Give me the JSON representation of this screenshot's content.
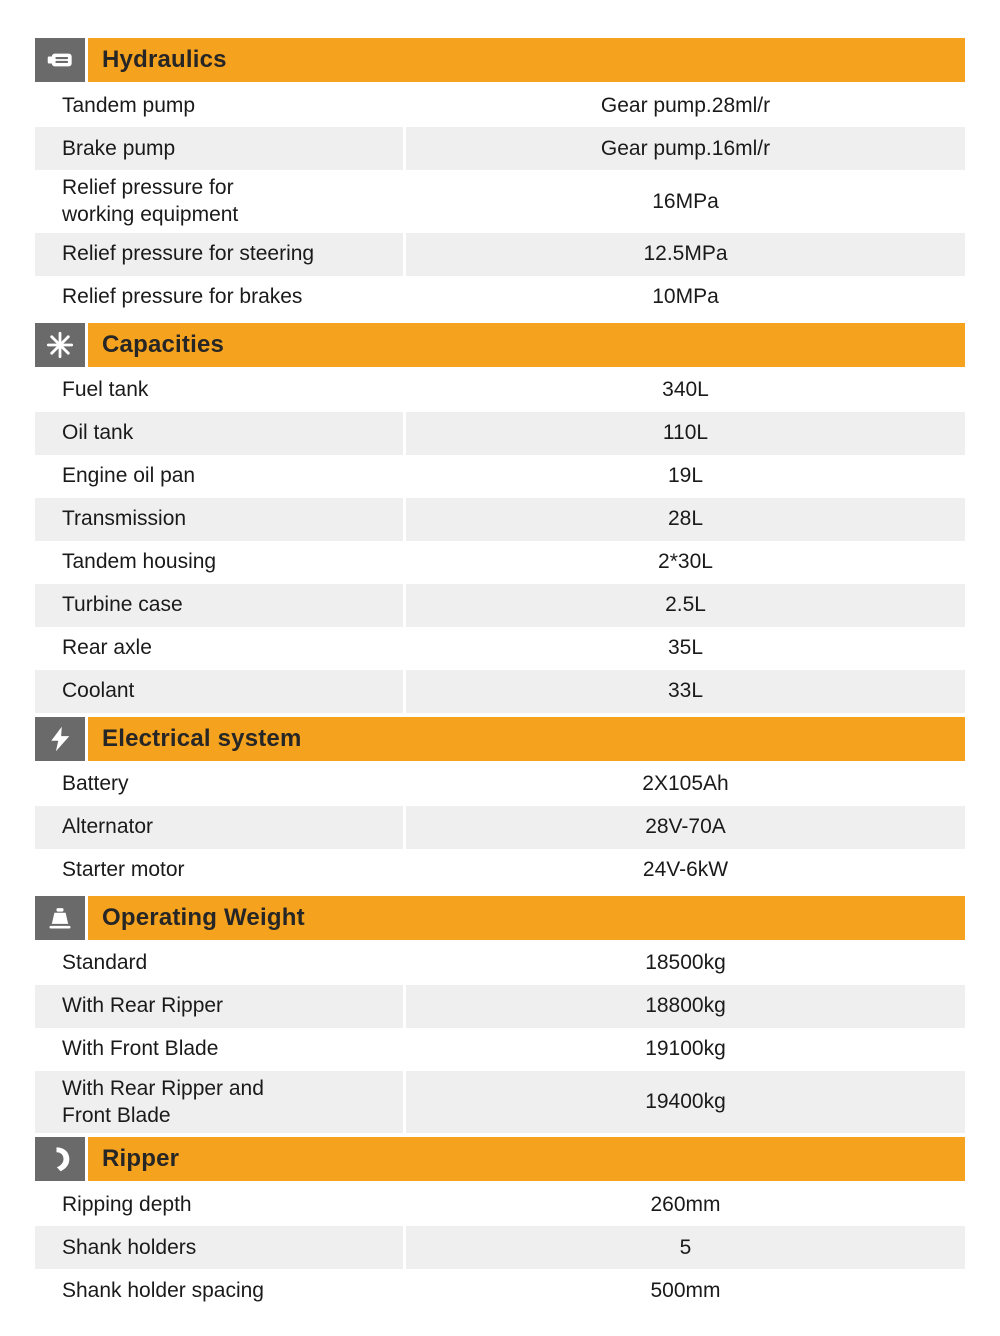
{
  "theme": {
    "accent": "#F5A31E",
    "icon_box": "#6A6A6A",
    "row_alt": "#EFEFEF",
    "text": "#1A1A1A"
  },
  "sections": [
    {
      "title": "Hydraulics",
      "icon": "pump-icon",
      "rows": [
        {
          "label": "Tandem pump",
          "value": "Gear pump.28ml/r"
        },
        {
          "label": "Brake pump",
          "value": "Gear pump.16ml/r"
        },
        {
          "label": "Relief pressure for\nworking equipment",
          "value": "16MPa"
        },
        {
          "label": "Relief pressure for steering",
          "value": "12.5MPa"
        },
        {
          "label": "Relief pressure for brakes",
          "value": "10MPa"
        }
      ]
    },
    {
      "title": "Capacities",
      "icon": "fan-icon",
      "rows": [
        {
          "label": "Fuel tank",
          "value": "340L"
        },
        {
          "label": "Oil tank",
          "value": "110L"
        },
        {
          "label": "Engine oil pan",
          "value": "19L"
        },
        {
          "label": "Transmission",
          "value": "28L"
        },
        {
          "label": "Tandem housing",
          "value": "2*30L"
        },
        {
          "label": "Turbine case",
          "value": "2.5L"
        },
        {
          "label": "Rear axle",
          "value": "35L"
        },
        {
          "label": "Coolant",
          "value": "33L"
        }
      ]
    },
    {
      "title": "Electrical system",
      "icon": "lightning-icon",
      "rows": [
        {
          "label": "Battery",
          "value": "2X105Ah"
        },
        {
          "label": "Alternator",
          "value": "28V-70A"
        },
        {
          "label": "Starter motor",
          "value": "24V-6kW"
        }
      ]
    },
    {
      "title": "Operating Weight",
      "icon": "weight-icon",
      "rows": [
        {
          "label": "Standard",
          "value": "18500kg"
        },
        {
          "label": "With Rear Ripper",
          "value": "18800kg"
        },
        {
          "label": "With Front Blade",
          "value": "19100kg"
        },
        {
          "label": "With Rear Ripper and\nFront Blade",
          "value": "19400kg"
        }
      ]
    },
    {
      "title": "Ripper",
      "icon": "ripper-icon",
      "rows": [
        {
          "label": "Ripping depth",
          "value": "260mm"
        },
        {
          "label": "Shank holders",
          "value": "5"
        },
        {
          "label": "Shank holder spacing",
          "value": "500mm"
        }
      ]
    }
  ]
}
